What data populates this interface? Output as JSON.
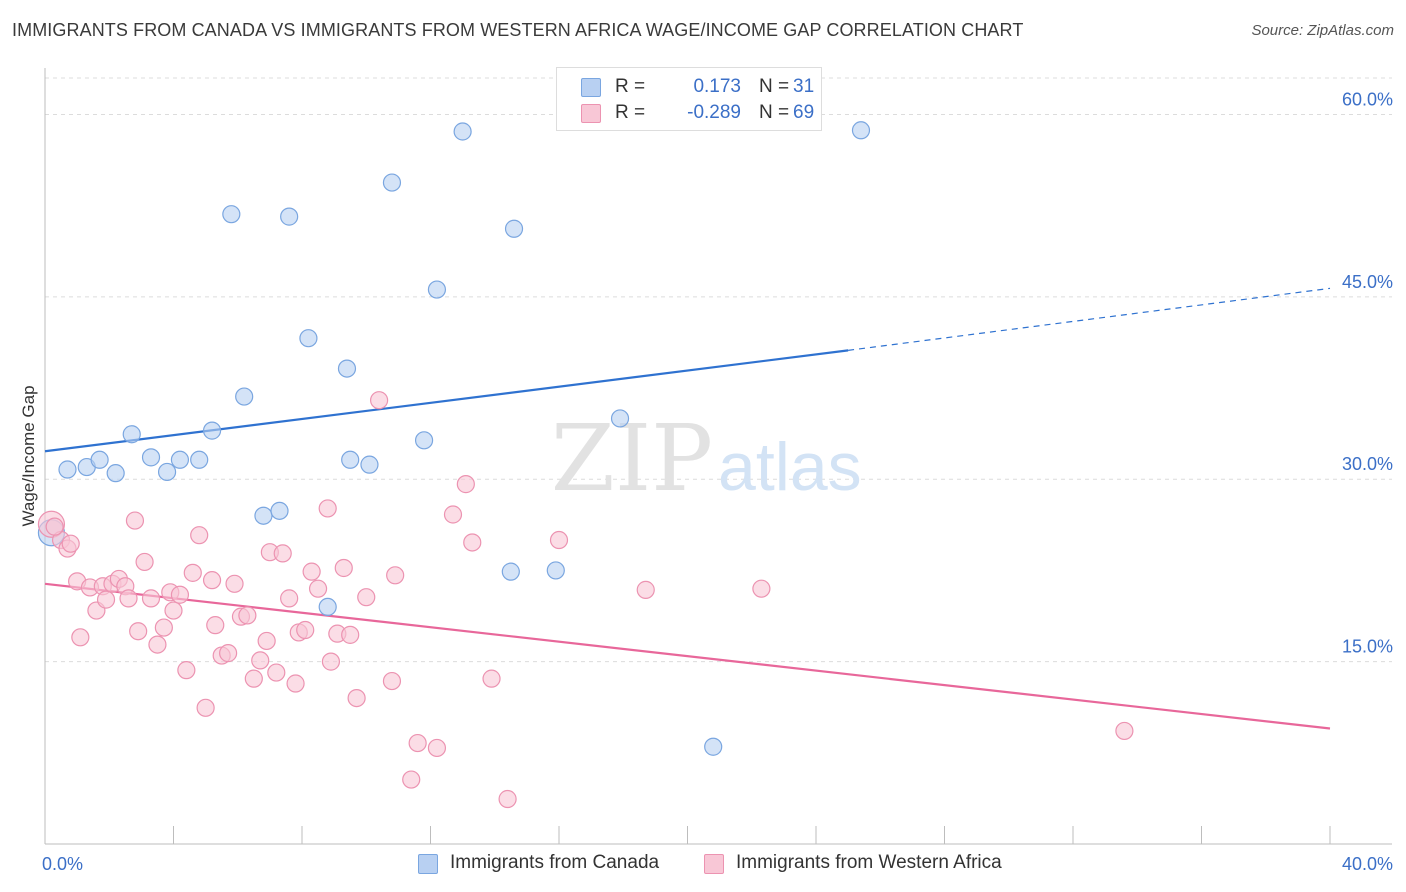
{
  "title": "IMMIGRANTS FROM CANADA VS IMMIGRANTS FROM WESTERN AFRICA WAGE/INCOME GAP CORRELATION CHART",
  "source": "Source: ZipAtlas.com",
  "watermark": {
    "zip": "ZIP",
    "atlas": "atlas"
  },
  "legend": {
    "r_label": "R =",
    "n_label": "N =",
    "canada": {
      "r": "0.173",
      "n": "31"
    },
    "wafrica": {
      "r": "-0.289",
      "n": "69"
    }
  },
  "colors": {
    "canada_fill": "#b8d0f2",
    "canada_stroke": "#7aa6e0",
    "canada_line": "#2f72d0",
    "wafrica_fill": "#f8c7d6",
    "wafrica_stroke": "#ec93b1",
    "wafrica_line": "#e8679a",
    "axis_text": "#3b6fc7",
    "grid": "#dcdcdc"
  },
  "chart_data": {
    "type": "scatter",
    "ylabel": "Wage/Income Gap",
    "xlim": [
      0,
      40
    ],
    "ylim": [
      0,
      63
    ],
    "y_ticks": [
      {
        "value": 15,
        "label": "15.0%"
      },
      {
        "value": 30,
        "label": "30.0%"
      },
      {
        "value": 45,
        "label": "45.0%"
      },
      {
        "value": 60,
        "label": "60.0%"
      }
    ],
    "x_tick_labels": [
      {
        "value": 0,
        "label": "0.0%"
      },
      {
        "value": 40,
        "label": "40.0%"
      }
    ],
    "x_minor_ticks": [
      0,
      4,
      8,
      12,
      16,
      20,
      24,
      28,
      32,
      36,
      40
    ],
    "series": [
      {
        "name": "Immigrants from Canada",
        "points": [
          [
            0.2,
            25.6
          ],
          [
            0.7,
            30.8
          ],
          [
            1.3,
            31.0
          ],
          [
            1.7,
            31.6
          ],
          [
            2.2,
            30.5
          ],
          [
            2.7,
            33.7
          ],
          [
            3.3,
            31.8
          ],
          [
            3.8,
            30.6
          ],
          [
            4.2,
            31.6
          ],
          [
            4.8,
            31.6
          ],
          [
            5.2,
            34.0
          ],
          [
            5.8,
            51.8
          ],
          [
            6.2,
            36.8
          ],
          [
            6.8,
            27.0
          ],
          [
            7.3,
            27.4
          ],
          [
            7.6,
            51.6
          ],
          [
            8.2,
            41.6
          ],
          [
            8.8,
            19.5
          ],
          [
            9.4,
            39.1
          ],
          [
            9.5,
            31.6
          ],
          [
            10.1,
            31.2
          ],
          [
            10.8,
            54.4
          ],
          [
            11.8,
            33.2
          ],
          [
            12.2,
            45.6
          ],
          [
            13.0,
            58.6
          ],
          [
            14.5,
            22.4
          ],
          [
            14.6,
            50.6
          ],
          [
            15.9,
            22.5
          ],
          [
            17.9,
            35.0
          ],
          [
            20.8,
            8.0
          ],
          [
            25.4,
            58.7
          ]
        ],
        "trend": {
          "x0": 0,
          "y0": 32.3,
          "x1": 25.0,
          "y1": 40.6,
          "dash_to_x": 40,
          "dash_to_y": 45.7
        }
      },
      {
        "name": "Immigrants from Western Africa",
        "points": [
          [
            0.2,
            26.3
          ],
          [
            0.5,
            25.0
          ],
          [
            0.7,
            24.3
          ],
          [
            0.8,
            24.7
          ],
          [
            1.0,
            21.6
          ],
          [
            1.1,
            17.0
          ],
          [
            1.4,
            21.1
          ],
          [
            1.6,
            19.2
          ],
          [
            1.8,
            21.2
          ],
          [
            1.9,
            20.1
          ],
          [
            2.1,
            21.4
          ],
          [
            2.3,
            21.8
          ],
          [
            2.5,
            21.2
          ],
          [
            2.6,
            20.2
          ],
          [
            2.8,
            26.6
          ],
          [
            2.9,
            17.5
          ],
          [
            3.1,
            23.2
          ],
          [
            3.3,
            20.2
          ],
          [
            3.5,
            16.4
          ],
          [
            3.7,
            17.8
          ],
          [
            3.9,
            20.7
          ],
          [
            4.0,
            19.2
          ],
          [
            4.2,
            20.5
          ],
          [
            4.4,
            14.3
          ],
          [
            4.6,
            22.3
          ],
          [
            4.8,
            25.4
          ],
          [
            5.0,
            11.2
          ],
          [
            5.2,
            21.7
          ],
          [
            5.3,
            18.0
          ],
          [
            5.5,
            15.5
          ],
          [
            5.7,
            15.7
          ],
          [
            5.9,
            21.4
          ],
          [
            6.1,
            18.7
          ],
          [
            6.3,
            18.8
          ],
          [
            6.5,
            13.6
          ],
          [
            6.7,
            15.1
          ],
          [
            6.9,
            16.7
          ],
          [
            7.0,
            24.0
          ],
          [
            7.2,
            14.1
          ],
          [
            7.4,
            23.9
          ],
          [
            7.6,
            20.2
          ],
          [
            7.8,
            13.2
          ],
          [
            7.9,
            17.4
          ],
          [
            8.1,
            17.6
          ],
          [
            8.3,
            22.4
          ],
          [
            8.5,
            21.0
          ],
          [
            8.8,
            27.6
          ],
          [
            8.9,
            15.0
          ],
          [
            9.1,
            17.3
          ],
          [
            9.3,
            22.7
          ],
          [
            9.5,
            17.2
          ],
          [
            9.7,
            12.0
          ],
          [
            10.0,
            20.3
          ],
          [
            10.4,
            36.5
          ],
          [
            10.8,
            13.4
          ],
          [
            10.9,
            22.1
          ],
          [
            11.4,
            5.3
          ],
          [
            11.6,
            8.3
          ],
          [
            12.2,
            7.9
          ],
          [
            12.7,
            27.1
          ],
          [
            13.1,
            29.6
          ],
          [
            13.3,
            24.8
          ],
          [
            13.9,
            13.6
          ],
          [
            14.4,
            3.7
          ],
          [
            16.0,
            25.0
          ],
          [
            18.7,
            20.9
          ],
          [
            22.3,
            21.0
          ],
          [
            33.6,
            9.3
          ],
          [
            0.3,
            26.1
          ]
        ],
        "trend": {
          "x0": 0,
          "y0": 21.4,
          "x1": 40,
          "y1": 9.5
        }
      }
    ]
  }
}
